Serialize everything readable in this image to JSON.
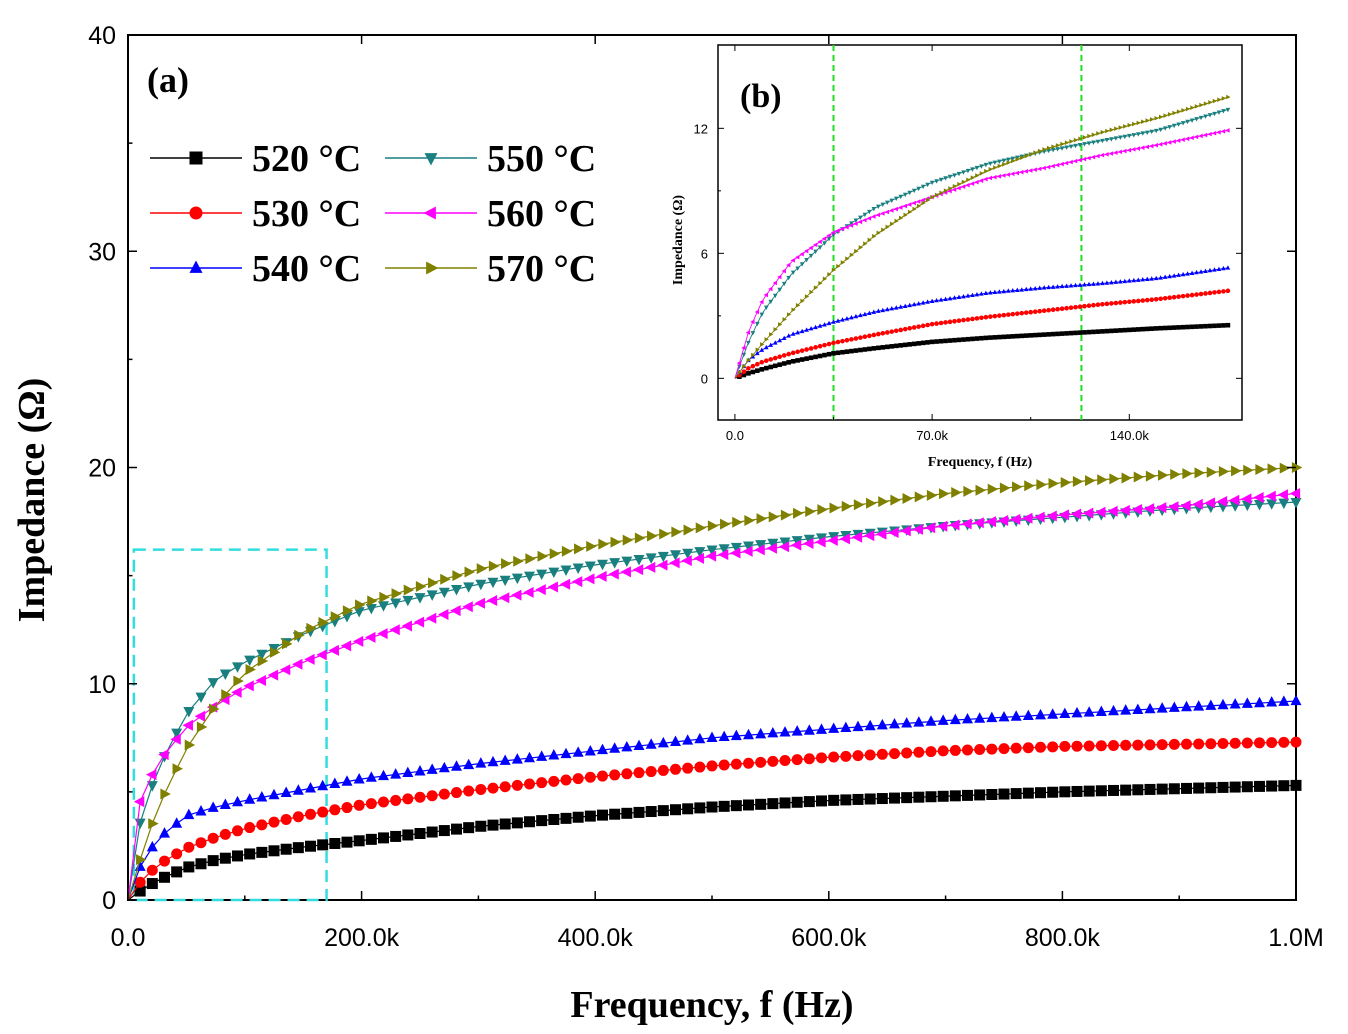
{
  "chart_data": [
    {
      "panel": "(a)",
      "type": "line",
      "xlabel": "Frequency, f (Hz)",
      "ylabel": "Impedance (Ω)",
      "xlim": [
        0,
        1000000
      ],
      "ylim": [
        0,
        40
      ],
      "xticks": [
        0,
        200000,
        400000,
        600000,
        800000,
        1000000
      ],
      "xtick_labels": [
        "0.0",
        "200.0k",
        "400.0k",
        "600.0k",
        "800.0k",
        "1.0M"
      ],
      "yticks": [
        0,
        10,
        20,
        30,
        40
      ],
      "ytick_labels": [
        "0",
        "10",
        "20",
        "30",
        "40"
      ],
      "legend": {
        "placement": "top-left",
        "columns": 2
      },
      "highlight_box": {
        "x_range": [
          5000,
          170000
        ],
        "y_range": [
          0,
          16.2
        ],
        "color": "#33dddd",
        "style": "dashed"
      },
      "series": [
        {
          "name": "520 °C",
          "color": "#000000",
          "marker": "square",
          "x": [
            0,
            10000,
            25000,
            50000,
            75000,
            100000,
            150000,
            200000,
            300000,
            400000,
            500000,
            600000,
            700000,
            800000,
            900000,
            1000000
          ],
          "values": [
            0,
            0.4,
            0.9,
            1.5,
            1.85,
            2.1,
            2.45,
            2.75,
            3.4,
            3.9,
            4.3,
            4.6,
            4.8,
            5.0,
            5.15,
            5.3
          ]
        },
        {
          "name": "530 °C",
          "color": "#ff0000",
          "marker": "circle",
          "x": [
            0,
            10000,
            25000,
            50000,
            75000,
            100000,
            150000,
            200000,
            300000,
            400000,
            500000,
            600000,
            700000,
            800000,
            900000,
            1000000
          ],
          "values": [
            0,
            0.8,
            1.6,
            2.4,
            2.9,
            3.3,
            3.9,
            4.4,
            5.1,
            5.7,
            6.2,
            6.6,
            6.9,
            7.1,
            7.2,
            7.3
          ]
        },
        {
          "name": "540 °C",
          "color": "#0000ff",
          "marker": "triangle-up",
          "x": [
            0,
            10000,
            25000,
            50000,
            75000,
            100000,
            150000,
            200000,
            300000,
            400000,
            500000,
            600000,
            700000,
            800000,
            900000,
            1000000
          ],
          "values": [
            0,
            1.5,
            2.8,
            3.9,
            4.3,
            4.6,
            5.1,
            5.6,
            6.3,
            6.9,
            7.5,
            7.9,
            8.3,
            8.6,
            8.9,
            9.2
          ]
        },
        {
          "name": "550 °C",
          "color": "#1a7f7f",
          "marker": "triangle-down",
          "x": [
            0,
            10000,
            25000,
            50000,
            75000,
            100000,
            150000,
            200000,
            300000,
            400000,
            500000,
            600000,
            700000,
            800000,
            900000,
            1000000
          ],
          "values": [
            0,
            3.5,
            6.0,
            8.6,
            10.2,
            11.0,
            12.3,
            13.4,
            14.6,
            15.5,
            16.2,
            16.8,
            17.3,
            17.7,
            18.1,
            18.4
          ]
        },
        {
          "name": "560 °C",
          "color": "#ff00ff",
          "marker": "triangle-left",
          "x": [
            0,
            10000,
            25000,
            50000,
            75000,
            100000,
            150000,
            200000,
            300000,
            400000,
            500000,
            600000,
            700000,
            800000,
            900000,
            1000000
          ],
          "values": [
            0,
            4.5,
            6.3,
            8.0,
            9.0,
            9.8,
            11.0,
            12.0,
            13.7,
            14.9,
            15.9,
            16.6,
            17.3,
            17.8,
            18.2,
            18.8
          ]
        },
        {
          "name": "570 °C",
          "color": "#808000",
          "marker": "triangle-right",
          "x": [
            0,
            10000,
            25000,
            50000,
            75000,
            100000,
            150000,
            200000,
            300000,
            400000,
            500000,
            600000,
            700000,
            800000,
            900000,
            1000000
          ],
          "values": [
            0,
            1.8,
            4.2,
            7.0,
            9.0,
            10.5,
            12.4,
            13.7,
            15.3,
            16.4,
            17.3,
            18.1,
            18.8,
            19.3,
            19.7,
            20.0
          ]
        }
      ]
    },
    {
      "panel": "(b)",
      "type": "line",
      "xlabel": "Frequency, f (Hz)",
      "ylabel": "Impedance (Ω)",
      "xlim": [
        -6000,
        180000
      ],
      "ylim": [
        -2,
        16
      ],
      "xticks": [
        0,
        70000,
        140000
      ],
      "xtick_labels": [
        "0.0",
        "70.0k",
        "140.0k"
      ],
      "yticks": [
        0,
        6,
        12
      ],
      "ytick_labels": [
        "0",
        "6",
        "12"
      ],
      "reference_lines": {
        "x": [
          35000,
          123000
        ],
        "color": "#22dd22",
        "style": "dashed"
      },
      "series": [
        {
          "name": "520 °C",
          "color": "#000000",
          "marker": "square",
          "x": [
            0,
            5000,
            10000,
            20000,
            35000,
            50000,
            70000,
            90000,
            110000,
            130000,
            150000,
            175000
          ],
          "values": [
            0,
            0.25,
            0.45,
            0.8,
            1.2,
            1.45,
            1.75,
            1.95,
            2.1,
            2.25,
            2.4,
            2.55
          ]
        },
        {
          "name": "530 °C",
          "color": "#ff0000",
          "marker": "circle",
          "x": [
            0,
            5000,
            10000,
            20000,
            35000,
            50000,
            70000,
            90000,
            110000,
            130000,
            150000,
            175000
          ],
          "values": [
            0,
            0.5,
            0.8,
            1.2,
            1.7,
            2.1,
            2.6,
            2.95,
            3.25,
            3.55,
            3.8,
            4.2
          ]
        },
        {
          "name": "540 °C",
          "color": "#0000ff",
          "marker": "triangle-up",
          "x": [
            0,
            5000,
            10000,
            20000,
            35000,
            50000,
            70000,
            90000,
            110000,
            130000,
            150000,
            175000
          ],
          "values": [
            0,
            0.9,
            1.4,
            2.1,
            2.7,
            3.2,
            3.7,
            4.1,
            4.35,
            4.55,
            4.8,
            5.3
          ]
        },
        {
          "name": "550 °C",
          "color": "#1a7f7f",
          "marker": "triangle-down",
          "x": [
            0,
            5000,
            10000,
            20000,
            35000,
            50000,
            70000,
            90000,
            110000,
            130000,
            150000,
            175000
          ],
          "values": [
            0,
            1.8,
            3.2,
            5.0,
            6.9,
            8.2,
            9.4,
            10.3,
            10.9,
            11.4,
            11.9,
            12.9
          ]
        },
        {
          "name": "560 °C",
          "color": "#ff00ff",
          "marker": "triangle-left",
          "x": [
            0,
            5000,
            10000,
            20000,
            35000,
            50000,
            70000,
            90000,
            110000,
            130000,
            150000,
            175000
          ],
          "values": [
            0,
            2.3,
            3.8,
            5.6,
            7.0,
            7.8,
            8.7,
            9.6,
            10.1,
            10.7,
            11.2,
            11.9
          ]
        },
        {
          "name": "570 °C",
          "color": "#808000",
          "marker": "triangle-right",
          "x": [
            0,
            5000,
            10000,
            20000,
            35000,
            50000,
            70000,
            90000,
            110000,
            130000,
            150000,
            175000
          ],
          "values": [
            0,
            0.9,
            1.7,
            3.2,
            5.2,
            6.9,
            8.7,
            10.0,
            11.0,
            11.8,
            12.5,
            13.5
          ]
        }
      ]
    }
  ]
}
